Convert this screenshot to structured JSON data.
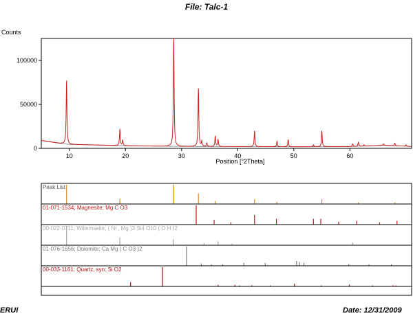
{
  "page": {
    "title": "File: Talc-1",
    "footer_left": "ERUI",
    "footer_right": "Date: 12/31/2009"
  },
  "colors": {
    "pattern": "#cc1d1d",
    "background_line": "#777777",
    "peak_list": "#e08a1e",
    "magnesite": "#c01818",
    "willemseite": "#a8a8a8",
    "dolomite": "#777777",
    "quartz": "#b01010",
    "frame": "#000000"
  },
  "chart_data": {
    "type": "line",
    "ylabel": "Counts",
    "xlabel": "Position [°2Theta]",
    "xlim": [
      5,
      71
    ],
    "ylim": [
      0,
      125000
    ],
    "xticks": [
      10,
      20,
      30,
      40,
      50,
      60
    ],
    "yticks": [
      0,
      50000,
      100000
    ],
    "ytick_labels": [
      "0",
      "50000",
      "100000"
    ],
    "grid": false,
    "baseline": [
      [
        5,
        9000
      ],
      [
        8,
        6000
      ],
      [
        10,
        4500
      ],
      [
        20,
        3000
      ],
      [
        30,
        2200
      ],
      [
        40,
        2000
      ],
      [
        50,
        1800
      ],
      [
        60,
        2000
      ],
      [
        66,
        3500
      ],
      [
        70,
        2500
      ],
      [
        71,
        2000
      ]
    ],
    "peaks": [
      {
        "x": 9.5,
        "y": 77000
      },
      {
        "x": 19.0,
        "y": 22000
      },
      {
        "x": 19.5,
        "y": 9000
      },
      {
        "x": 28.6,
        "y": 125000
      },
      {
        "x": 33.0,
        "y": 68000
      },
      {
        "x": 33.6,
        "y": 8000
      },
      {
        "x": 34.5,
        "y": 6000
      },
      {
        "x": 36.0,
        "y": 14000
      },
      {
        "x": 36.5,
        "y": 10000
      },
      {
        "x": 43.0,
        "y": 20000
      },
      {
        "x": 47.0,
        "y": 8000
      },
      {
        "x": 49.0,
        "y": 10000
      },
      {
        "x": 53.5,
        "y": 4000
      },
      {
        "x": 55.0,
        "y": 20000
      },
      {
        "x": 60.5,
        "y": 5000
      },
      {
        "x": 61.5,
        "y": 7000
      },
      {
        "x": 62.5,
        "y": 4000
      },
      {
        "x": 66.0,
        "y": 5000
      },
      {
        "x": 68.0,
        "y": 6000
      },
      {
        "x": 70.0,
        "y": 4000
      }
    ],
    "reference_patterns": [
      {
        "name": "Peak List",
        "color_key": "peak_list",
        "sticks": [
          [
            9.5,
            1.0
          ],
          [
            19.0,
            0.28
          ],
          [
            28.6,
            1.0
          ],
          [
            33.0,
            0.55
          ],
          [
            36.0,
            0.15
          ],
          [
            43.0,
            0.25
          ],
          [
            47.0,
            0.1
          ],
          [
            55.0,
            0.25
          ],
          [
            61.5,
            0.08
          ],
          [
            68.0,
            0.08
          ]
        ]
      },
      {
        "name": "01-071-1534; Magnesite; Mg C O3",
        "color_key": "magnesite",
        "sticks": [
          [
            32.6,
            1.0
          ],
          [
            35.8,
            0.25
          ],
          [
            38.8,
            0.12
          ],
          [
            43.0,
            0.5
          ],
          [
            46.9,
            0.3
          ],
          [
            53.5,
            0.3
          ],
          [
            54.8,
            0.3
          ],
          [
            58.0,
            0.15
          ],
          [
            61.2,
            0.2
          ],
          [
            65.3,
            0.12
          ],
          [
            68.4,
            0.2
          ]
        ]
      },
      {
        "name": "00-022-0711; Willemseite; ( Ni , Mg )3 Si4 O10 ( O H )2",
        "color_key": "willemseite",
        "sticks": [
          [
            9.5,
            1.0
          ],
          [
            19.0,
            0.4
          ],
          [
            28.6,
            0.3
          ],
          [
            34.0,
            0.12
          ],
          [
            36.5,
            0.2
          ],
          [
            39.0,
            0.08
          ],
          [
            60.5,
            0.15
          ]
        ]
      },
      {
        "name": "01-076-1656; Dolomite; Ca Mg ( C O3 )2",
        "color_key": "dolomite",
        "sticks": [
          [
            30.9,
            1.0
          ],
          [
            33.5,
            0.12
          ],
          [
            35.3,
            0.08
          ],
          [
            37.3,
            0.08
          ],
          [
            41.1,
            0.15
          ],
          [
            44.9,
            0.15
          ],
          [
            50.5,
            0.25
          ],
          [
            51.0,
            0.2
          ],
          [
            51.8,
            0.15
          ],
          [
            59.8,
            0.1
          ],
          [
            63.4,
            0.08
          ],
          [
            67.4,
            0.08
          ]
        ]
      },
      {
        "name": "00-033-1161; Quartz, syn; Si O2",
        "color_key": "quartz",
        "sticks": [
          [
            20.9,
            0.22
          ],
          [
            26.6,
            1.0
          ],
          [
            36.5,
            0.08
          ],
          [
            39.5,
            0.08
          ],
          [
            40.3,
            0.05
          ],
          [
            42.5,
            0.06
          ],
          [
            45.8,
            0.05
          ],
          [
            50.1,
            0.14
          ],
          [
            54.9,
            0.05
          ],
          [
            59.9,
            0.09
          ],
          [
            64.0,
            0.05
          ],
          [
            67.7,
            0.06
          ],
          [
            68.2,
            0.05
          ]
        ]
      }
    ]
  }
}
